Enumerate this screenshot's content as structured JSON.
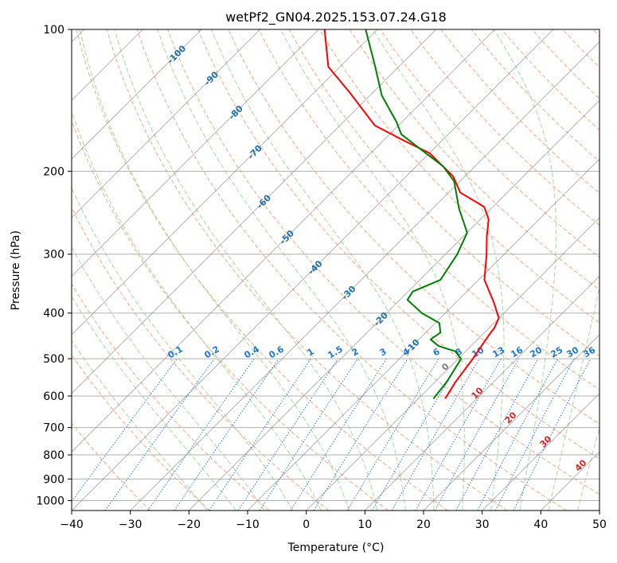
{
  "chart_data": {
    "type": "line",
    "title": "wetPf2_GN04.2025.153.07.24.G18",
    "xlabel": "Temperature (°C)",
    "ylabel": "Pressure (hPa)",
    "xlim": [
      -40,
      50
    ],
    "ylim": [
      1050,
      100
    ],
    "y_scale": "log",
    "x_ticks": [
      "−40",
      "−30",
      "−20",
      "−10",
      "0",
      "10",
      "20",
      "30",
      "40",
      "50"
    ],
    "y_ticks": [
      "1000",
      "900",
      "800",
      "700",
      "600",
      "500",
      "400",
      "300",
      "200",
      "100"
    ],
    "series": [
      {
        "role": "temperature",
        "color": "#ff0000",
        "points": [
          [
            4.6,
            608
          ],
          [
            3.5,
            560
          ],
          [
            2.5,
            500
          ],
          [
            1.8,
            470
          ],
          [
            1.2,
            445
          ],
          [
            0.9,
            430
          ],
          [
            0.0,
            410
          ],
          [
            -3.5,
            380
          ],
          [
            -9.0,
            340
          ],
          [
            -13.0,
            300
          ],
          [
            -16.0,
            275
          ],
          [
            -18.6,
            253
          ],
          [
            -21.5,
            238
          ],
          [
            -28.0,
            222
          ],
          [
            -32.0,
            205
          ],
          [
            -40.0,
            183
          ],
          [
            -46.0,
            173
          ],
          [
            -54.0,
            160
          ],
          [
            -64.0,
            136
          ],
          [
            -72.0,
            120
          ],
          [
            -79.0,
            100
          ]
        ]
      },
      {
        "role": "dewpoint",
        "color": "#008000",
        "points": [
          [
            2.6,
            608
          ],
          [
            2.0,
            560
          ],
          [
            0.5,
            500
          ],
          [
            -1.8,
            482
          ],
          [
            -5.5,
            470
          ],
          [
            -8.0,
            455
          ],
          [
            -7.5,
            440
          ],
          [
            -9.3,
            420
          ],
          [
            -14.0,
            400
          ],
          [
            -18.7,
            375
          ],
          [
            -19.2,
            360
          ],
          [
            -16.5,
            340
          ],
          [
            -18.0,
            300
          ],
          [
            -20.0,
            270
          ],
          [
            -25.5,
            240
          ],
          [
            -31.0,
            210
          ],
          [
            -35.5,
            195
          ],
          [
            -42.0,
            180
          ],
          [
            -48.0,
            167
          ],
          [
            -51.0,
            157
          ],
          [
            -58.0,
            138
          ],
          [
            -64.0,
            120
          ],
          [
            -72.0,
            100
          ]
        ]
      }
    ],
    "isotherm_labels": [
      {
        "t": -100,
        "text": "-100"
      },
      {
        "t": -90,
        "text": "-90"
      },
      {
        "t": -80,
        "text": "-80"
      },
      {
        "t": -70,
        "text": "-70"
      },
      {
        "t": -60,
        "text": "-60"
      },
      {
        "t": -50,
        "text": "-50"
      },
      {
        "t": -40,
        "text": "-40"
      },
      {
        "t": -30,
        "text": "-30"
      },
      {
        "t": -20,
        "text": "-20"
      },
      {
        "t": -10,
        "text": "-10"
      }
    ],
    "mixing_ratio_labels": [
      {
        "w": 0.1,
        "text": "0.1"
      },
      {
        "w": 0.2,
        "text": "0.2"
      },
      {
        "w": 0.4,
        "text": "0.4"
      },
      {
        "w": 0.6,
        "text": "0.6"
      },
      {
        "w": 1,
        "text": "1"
      },
      {
        "w": 1.5,
        "text": "1.5"
      },
      {
        "w": 2,
        "text": "2"
      },
      {
        "w": 3,
        "text": "3"
      },
      {
        "w": 4,
        "text": "4"
      },
      {
        "w": 6,
        "text": "6"
      },
      {
        "w": 8,
        "text": "8"
      },
      {
        "w": 10,
        "text": "10"
      },
      {
        "w": 13,
        "text": "13"
      },
      {
        "w": 16,
        "text": "16"
      },
      {
        "w": 20,
        "text": "20"
      },
      {
        "w": 25,
        "text": "25"
      },
      {
        "w": 30,
        "text": "30"
      },
      {
        "w": 36,
        "text": "36"
      }
    ],
    "moist_adiabat_labels": [
      {
        "t": 0,
        "text": "0"
      },
      {
        "t": 10,
        "text": "10"
      },
      {
        "t": 20,
        "text": "20"
      },
      {
        "t": 30,
        "text": "30"
      },
      {
        "t": 40,
        "text": "40"
      }
    ],
    "colors": {
      "isotherm": "#7f7f7f",
      "isobar": "#b0b0b0",
      "dry_adiabat": "#f4a582",
      "moist_adiabat": "#a6d8a0",
      "mixing_ratio": "#1f77d4",
      "iso_label": "#1f6fa8",
      "moist_label": "#d62728",
      "freezing_label": "#7f7f7f",
      "tan_curve": "#d9bc8c"
    }
  }
}
